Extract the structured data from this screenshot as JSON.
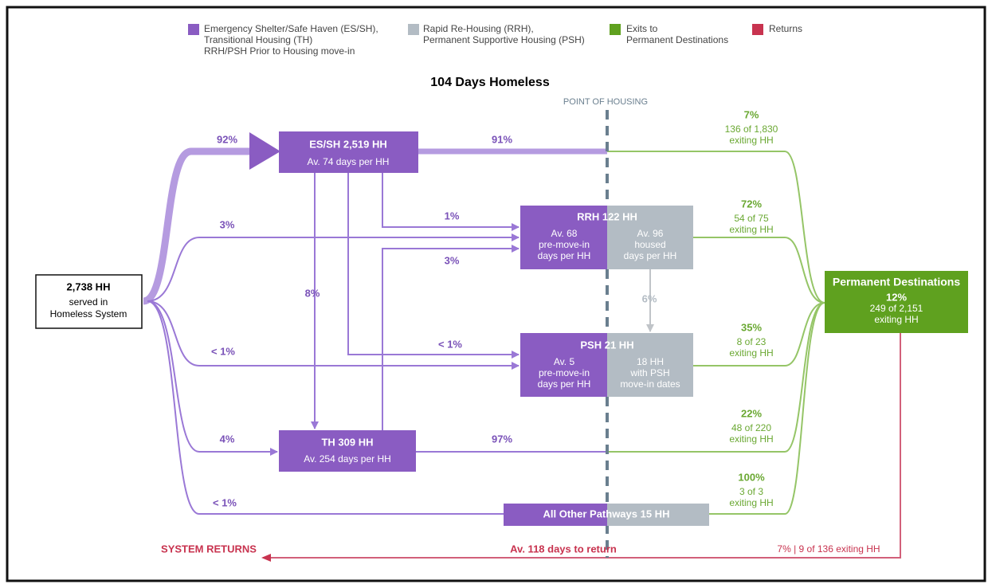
{
  "legend": [
    {
      "lines": [
        "Emergency Shelter/Safe Haven (ES/SH),",
        "Transitional Housing (TH)",
        "RRH/PSH Prior to Housing move-in"
      ]
    },
    {
      "lines": [
        "Rapid Re-Housing (RRH),",
        "Permanent Supportive Housing (PSH)"
      ]
    },
    {
      "lines": [
        "Exits to",
        "Permanent Destinations"
      ]
    },
    {
      "lines": [
        "Returns"
      ]
    }
  ],
  "title": "104 Days Homeless",
  "point_of_housing": "POINT OF HOUSING",
  "source": {
    "lines": [
      "2,738 HH",
      "served in",
      "Homeless System"
    ]
  },
  "nodes": {
    "es_sh": {
      "title": "ES/SH  2,519 HH",
      "detail": "Av. 74 days per HH"
    },
    "rrh": {
      "title": "RRH  122 HH",
      "left": [
        "Av. 68",
        "pre-move-in",
        "days per HH"
      ],
      "right": [
        "Av. 96",
        "housed",
        "days per HH"
      ]
    },
    "psh": {
      "title": "PSH  21 HH",
      "left": [
        "Av. 5",
        "pre-move-in",
        "days per HH"
      ],
      "right": [
        "18 HH",
        "with PSH",
        "move-in dates"
      ]
    },
    "th": {
      "title": "TH  309 HH",
      "detail": "Av. 254 days per HH"
    },
    "other": {
      "title": "All Other Pathways  15 HH"
    }
  },
  "destination": {
    "title": "Permanent Destinations",
    "lines": [
      "12%",
      "249 of 2,151",
      "exiting HH"
    ]
  },
  "flows": [
    "92%",
    "91%",
    "3%",
    "1%",
    "3%",
    "8%",
    "< 1%",
    "< 1%",
    "4%",
    "97%",
    "< 1%",
    "6%"
  ],
  "exits": [
    {
      "percent": "7%",
      "count": "136 of 1,830",
      "label": "exiting HH"
    },
    {
      "percent": "72%",
      "count": "54 of 75",
      "label": "exiting HH"
    },
    {
      "percent": "35%",
      "count": "8 of 23",
      "label": "exiting HH"
    },
    {
      "percent": "22%",
      "count": "48 of 220",
      "label": "exiting HH"
    },
    {
      "percent": "100%",
      "count": "3 of 3",
      "label": "exiting HH"
    }
  ],
  "returns": {
    "label": "SYSTEM RETURNS",
    "days": "Av. 118 days to return",
    "count": "7% | 9 of 136 exiting HH"
  }
}
